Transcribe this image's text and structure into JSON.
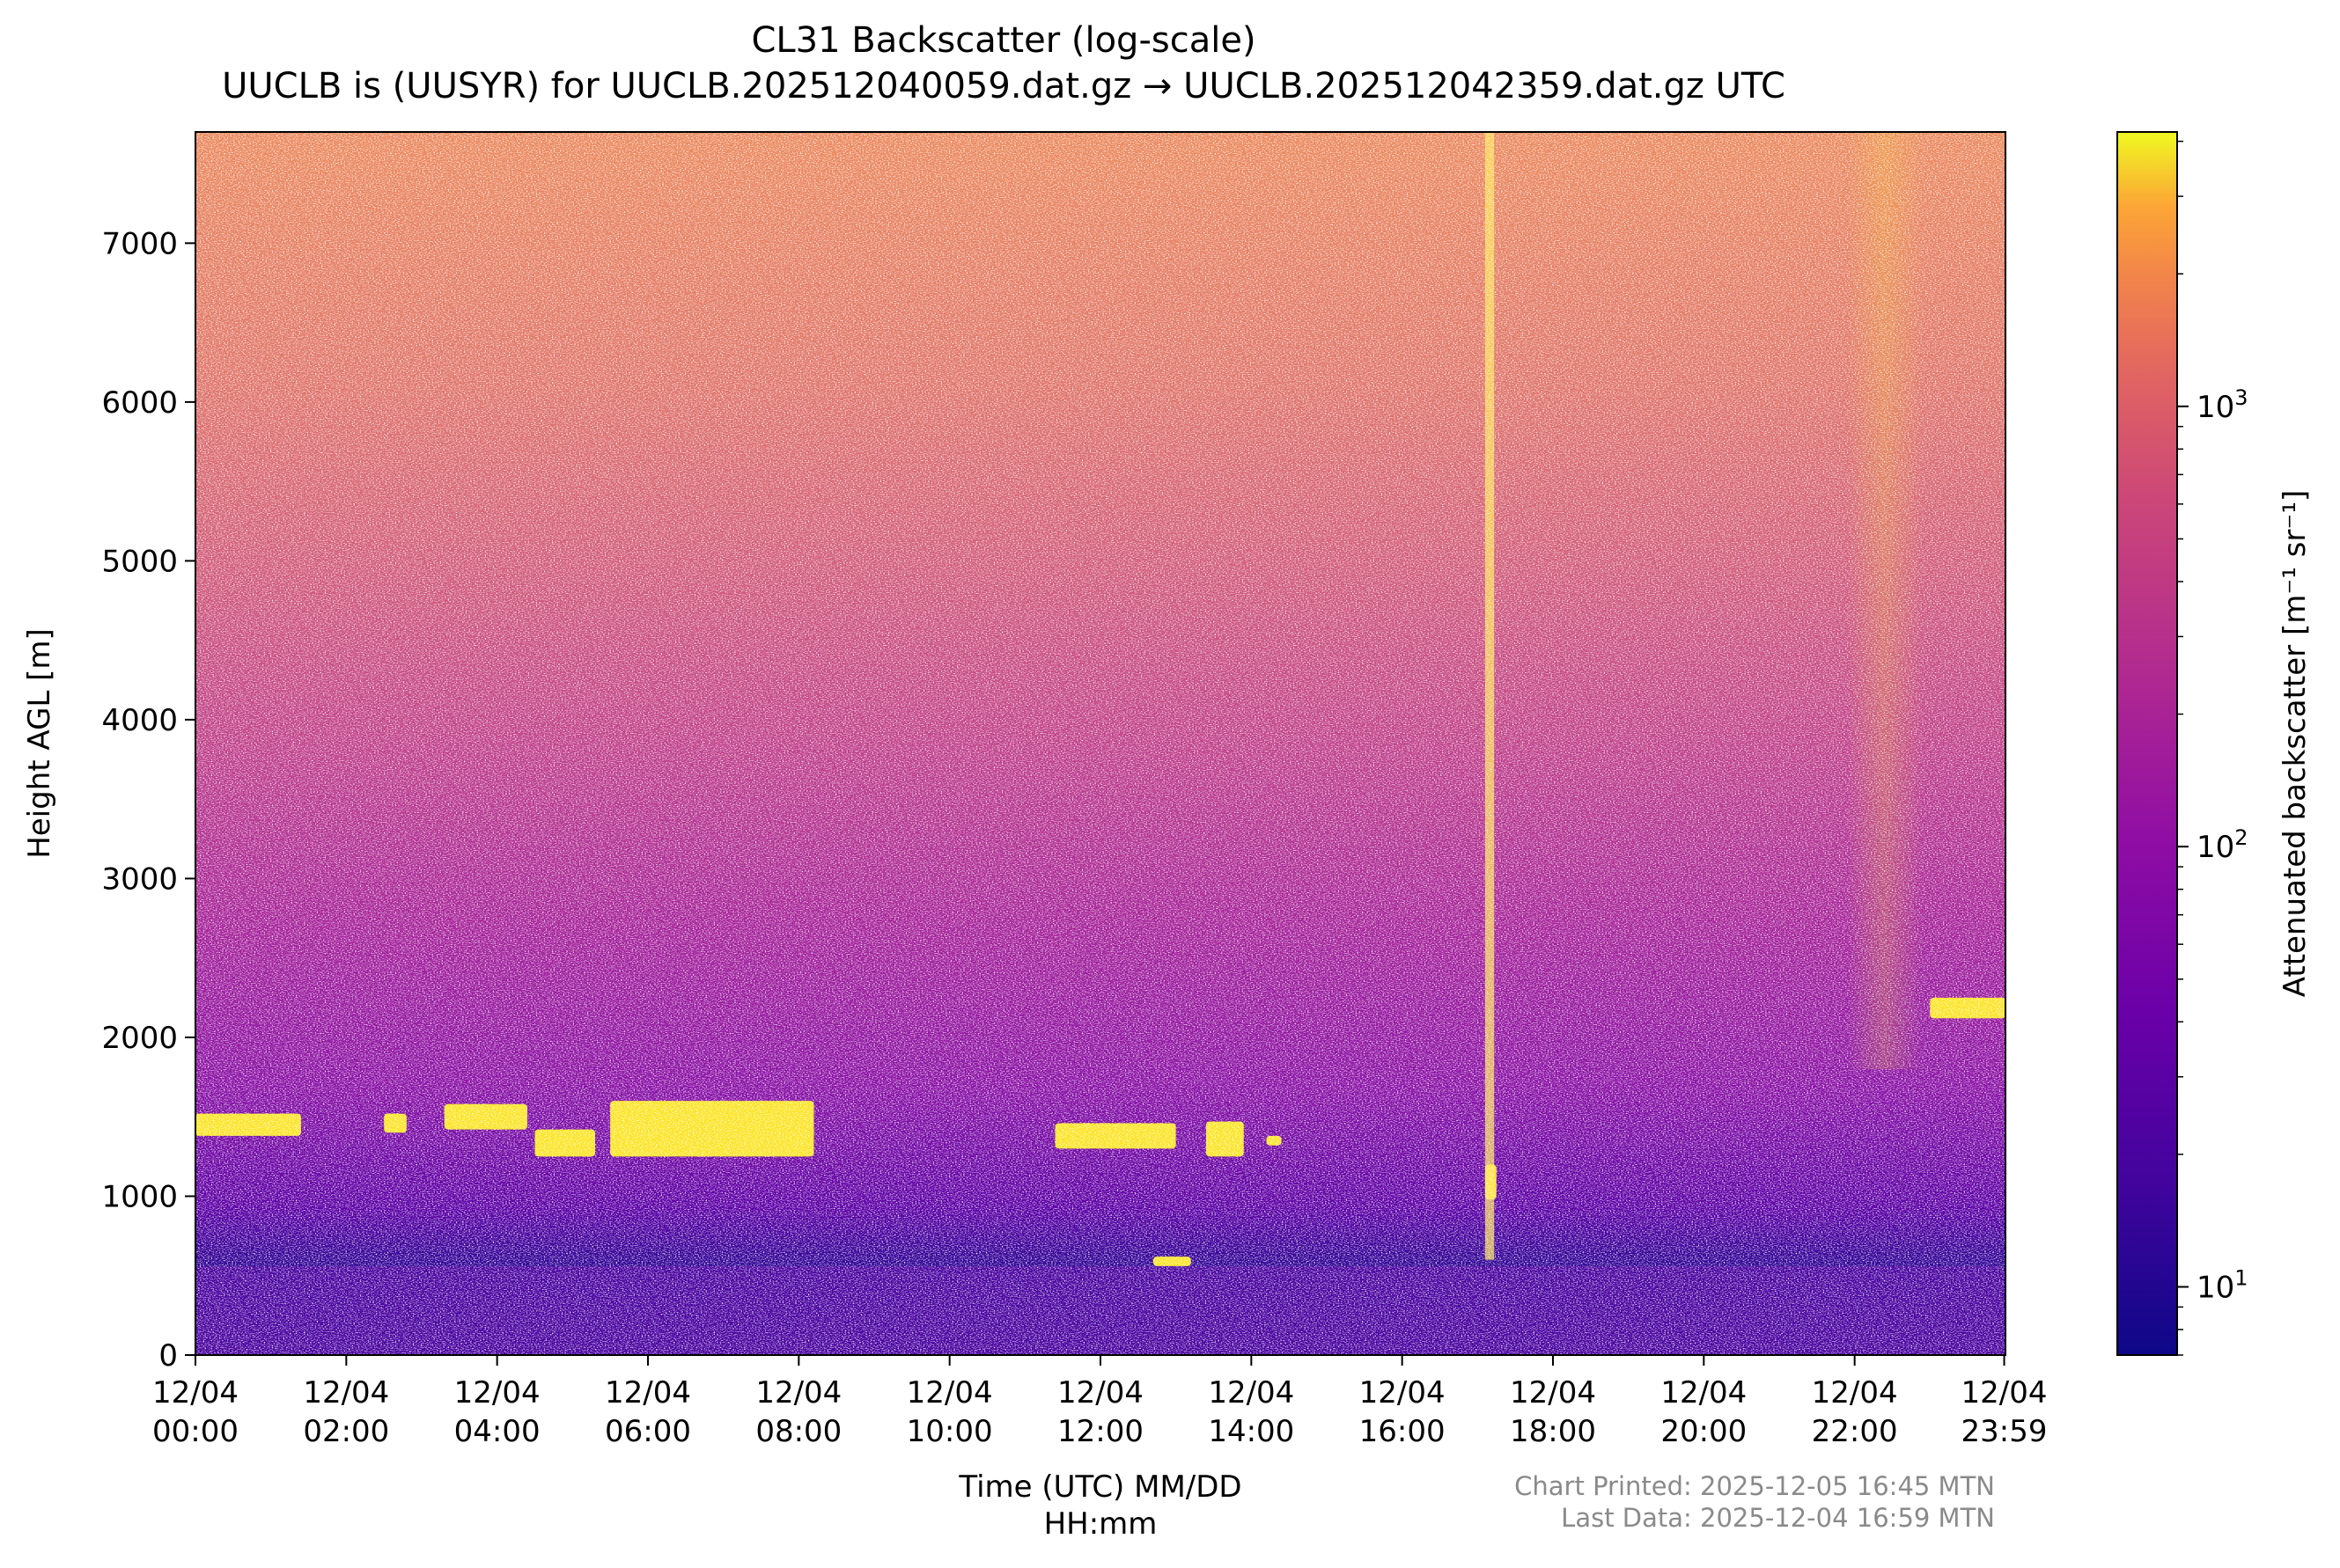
{
  "chart_data": {
    "type": "heatmap",
    "title": "CL31 Backscatter (log-scale)",
    "subtitle": "UUCLB is (UUSYR) for UUCLB.202512040059.dat.gz → UUCLB.202512042359.dat.gz UTC",
    "xlabel_line1": "Time (UTC) MM/DD",
    "xlabel_line2": "HH:mm",
    "ylabel": "Height AGL [m]",
    "colorbar_label": "Attenuated backscatter [m⁻¹ sr⁻¹]",
    "colormap": "plasma",
    "x_range": [
      "12/04 00:00",
      "12/04 23:59"
    ],
    "y_range": [
      0,
      7700
    ],
    "color_range": [
      7,
      4200
    ],
    "color_scale": "log",
    "x_ticks": [
      {
        "date": "12/04",
        "time": "00:00",
        "hour": 0
      },
      {
        "date": "12/04",
        "time": "02:00",
        "hour": 2
      },
      {
        "date": "12/04",
        "time": "04:00",
        "hour": 4
      },
      {
        "date": "12/04",
        "time": "06:00",
        "hour": 6
      },
      {
        "date": "12/04",
        "time": "08:00",
        "hour": 8
      },
      {
        "date": "12/04",
        "time": "10:00",
        "hour": 10
      },
      {
        "date": "12/04",
        "time": "12:00",
        "hour": 12
      },
      {
        "date": "12/04",
        "time": "14:00",
        "hour": 14
      },
      {
        "date": "12/04",
        "time": "16:00",
        "hour": 16
      },
      {
        "date": "12/04",
        "time": "18:00",
        "hour": 18
      },
      {
        "date": "12/04",
        "time": "20:00",
        "hour": 20
      },
      {
        "date": "12/04",
        "time": "22:00",
        "hour": 22
      },
      {
        "date": "12/04",
        "time": "23:59",
        "hour": 23.983
      }
    ],
    "y_ticks": [
      0,
      1000,
      2000,
      3000,
      4000,
      5000,
      6000,
      7000
    ],
    "colorbar_ticks": [
      {
        "value": 10,
        "label": "10",
        "exp": "1"
      },
      {
        "value": 100,
        "label": "10",
        "exp": "2"
      },
      {
        "value": 1000,
        "label": "10",
        "exp": "3"
      }
    ],
    "cloud_layers": [
      {
        "start_hour": 0.0,
        "end_hour": 1.4,
        "base_m": 1380,
        "top_m": 1520
      },
      {
        "start_hour": 2.5,
        "end_hour": 2.8,
        "base_m": 1400,
        "top_m": 1520
      },
      {
        "start_hour": 3.3,
        "end_hour": 4.4,
        "base_m": 1420,
        "top_m": 1580
      },
      {
        "start_hour": 4.5,
        "end_hour": 5.3,
        "base_m": 1250,
        "top_m": 1420
      },
      {
        "start_hour": 5.5,
        "end_hour": 8.2,
        "base_m": 1250,
        "top_m": 1600
      },
      {
        "start_hour": 11.4,
        "end_hour": 13.0,
        "base_m": 1300,
        "top_m": 1460
      },
      {
        "start_hour": 13.4,
        "end_hour": 13.9,
        "base_m": 1250,
        "top_m": 1470
      },
      {
        "start_hour": 14.2,
        "end_hour": 14.4,
        "base_m": 1320,
        "top_m": 1380
      },
      {
        "start_hour": 17.1,
        "end_hour": 17.25,
        "base_m": 980,
        "top_m": 1200
      },
      {
        "start_hour": 23.0,
        "end_hour": 24.0,
        "base_m": 2120,
        "top_m": 2250
      },
      {
        "start_hour": 12.7,
        "end_hour": 13.2,
        "base_m": 560,
        "top_m": 620
      }
    ],
    "notes": [
      "Chart Printed: 2025-12-05 16:45 MTN",
      "Last Data: 2025-12-04 16:59 MTN"
    ]
  }
}
